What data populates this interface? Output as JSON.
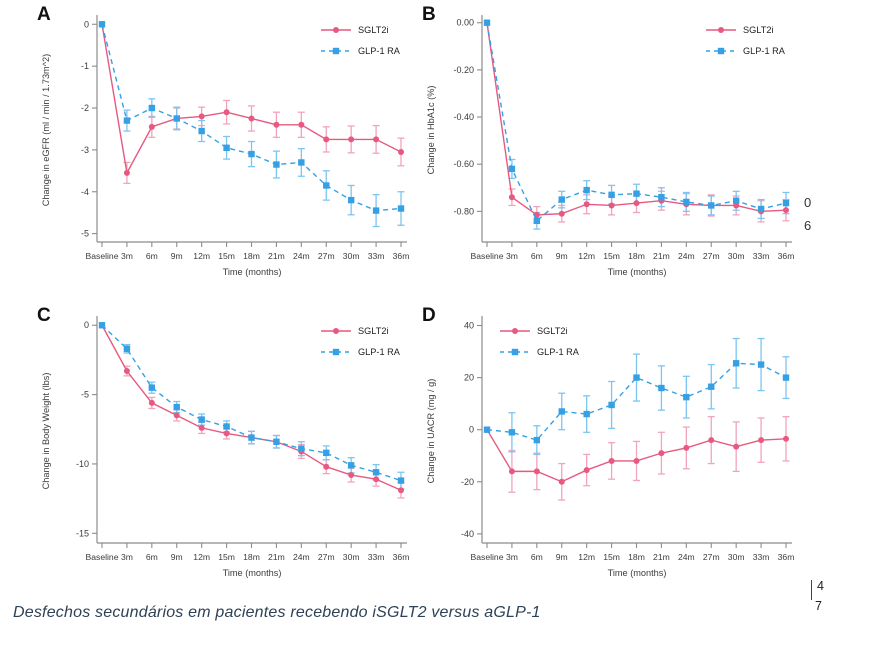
{
  "figure": {
    "caption": "Desfechos secundários em pacientes recebendo iSGLT2 versus aGLP-1",
    "clipped_right": {
      "line1": "0",
      "line2": "6"
    },
    "page_marks": {
      "line1": "4",
      "line2": "7"
    }
  },
  "colors": {
    "sglt2i": "#e75981",
    "sglt2i_error": "#f2a4bb",
    "glp1": "#36a0e4",
    "glp1_error": "#7cc5f1",
    "axis": "#8c8c8c",
    "tick_text": "#3c3c3c",
    "legend_text": "#222222",
    "caption_text": "#2f4156"
  },
  "chart_data": [
    {
      "letter": "A",
      "type": "line",
      "ylabel": "Change in eGFR (ml / min / 1.73m^2)",
      "xlabel": "Time (months)",
      "categories": [
        "Baseline",
        "3m",
        "6m",
        "9m",
        "12m",
        "15m",
        "18m",
        "21m",
        "24m",
        "27m",
        "30m",
        "33m",
        "36m"
      ],
      "ylim": [
        -5.2,
        0.15
      ],
      "ytick_values": [
        0,
        -1,
        -2,
        -3,
        -4,
        -5
      ],
      "ytick_labels": [
        "0",
        "-1",
        "-2",
        "-3",
        "-4",
        "-5"
      ],
      "legend_pos": "top-right",
      "series": [
        {
          "name": "SGLT2i",
          "style": "solid",
          "marker": "circle",
          "color_key": "sglt2i",
          "error_color_key": "sglt2i_error",
          "values": [
            0,
            -3.55,
            -2.45,
            -2.25,
            -2.2,
            -2.1,
            -2.25,
            -2.4,
            -2.4,
            -2.75,
            -2.75,
            -2.75,
            -3.05
          ],
          "errors": [
            0,
            0.25,
            0.25,
            0.25,
            0.22,
            0.28,
            0.3,
            0.3,
            0.3,
            0.3,
            0.32,
            0.33,
            0.33
          ]
        },
        {
          "name": "GLP-1 RA",
          "style": "dashed",
          "marker": "square",
          "color_key": "glp1",
          "error_color_key": "glp1_error",
          "values": [
            0,
            -2.3,
            -2.0,
            -2.25,
            -2.55,
            -2.95,
            -3.1,
            -3.35,
            -3.3,
            -3.85,
            -4.2,
            -4.45,
            -4.4
          ],
          "errors": [
            0,
            0.25,
            0.22,
            0.27,
            0.25,
            0.27,
            0.3,
            0.32,
            0.33,
            0.35,
            0.35,
            0.38,
            0.4
          ]
        }
      ]
    },
    {
      "letter": "B",
      "type": "line",
      "ylabel": "Change in HbA1c (%)",
      "xlabel": "Time (months)",
      "categories": [
        "Baseline",
        "3m",
        "6m",
        "9m",
        "12m",
        "15m",
        "18m",
        "21m",
        "24m",
        "27m",
        "30m",
        "33m",
        "36m"
      ],
      "ylim": [
        -0.93,
        0.02
      ],
      "ytick_values": [
        0,
        -0.2,
        -0.4,
        -0.6,
        -0.8
      ],
      "ytick_labels": [
        "0.00",
        "-0.20",
        "-0.40",
        "-0.60",
        "-0.80"
      ],
      "legend_pos": "top-right",
      "series": [
        {
          "name": "SGLT2i",
          "style": "solid",
          "marker": "circle",
          "color_key": "sglt2i",
          "error_color_key": "sglt2i_error",
          "values": [
            0,
            -0.74,
            -0.815,
            -0.81,
            -0.77,
            -0.775,
            -0.765,
            -0.755,
            -0.77,
            -0.775,
            -0.775,
            -0.8,
            -0.795
          ],
          "errors": [
            0,
            0.035,
            0.035,
            0.035,
            0.04,
            0.04,
            0.04,
            0.04,
            0.045,
            0.045,
            0.04,
            0.045,
            0.045
          ]
        },
        {
          "name": "GLP-1 RA",
          "style": "dashed",
          "marker": "square",
          "color_key": "glp1",
          "error_color_key": "glp1_error",
          "values": [
            0,
            -0.62,
            -0.84,
            -0.75,
            -0.71,
            -0.73,
            -0.725,
            -0.74,
            -0.76,
            -0.775,
            -0.755,
            -0.79,
            -0.765
          ],
          "errors": [
            0,
            0.04,
            0.035,
            0.035,
            0.04,
            0.04,
            0.04,
            0.04,
            0.04,
            0.04,
            0.04,
            0.04,
            0.045
          ]
        }
      ]
    },
    {
      "letter": "C",
      "type": "line",
      "ylabel": "Change in Body Weight (lbs)",
      "xlabel": "Time (months)",
      "categories": [
        "Baseline",
        "3m",
        "6m",
        "9m",
        "12m",
        "15m",
        "18m",
        "21m",
        "24m",
        "27m",
        "30m",
        "33m",
        "36m"
      ],
      "ylim": [
        -15.7,
        0.45
      ],
      "ytick_values": [
        0,
        -5,
        -10,
        -15
      ],
      "ytick_labels": [
        "0",
        "-5",
        "-10",
        "-15"
      ],
      "legend_pos": "top-right",
      "series": [
        {
          "name": "SGLT2i",
          "style": "solid",
          "marker": "circle",
          "color_key": "sglt2i",
          "error_color_key": "sglt2i_error",
          "values": [
            0,
            -3.3,
            -5.6,
            -6.5,
            -7.4,
            -7.8,
            -8.1,
            -8.4,
            -9.1,
            -10.2,
            -10.8,
            -11.1,
            -11.9
          ],
          "errors": [
            0,
            0.35,
            0.4,
            0.4,
            0.4,
            0.4,
            0.45,
            0.45,
            0.5,
            0.5,
            0.5,
            0.5,
            0.55
          ]
        },
        {
          "name": "GLP-1 RA",
          "style": "dashed",
          "marker": "square",
          "color_key": "glp1",
          "error_color_key": "glp1_error",
          "values": [
            0,
            -1.7,
            -4.5,
            -5.9,
            -6.8,
            -7.3,
            -8.1,
            -8.4,
            -8.9,
            -9.2,
            -10.1,
            -10.6,
            -11.2
          ],
          "errors": [
            0,
            0.3,
            0.4,
            0.4,
            0.4,
            0.4,
            0.45,
            0.45,
            0.5,
            0.5,
            0.55,
            0.55,
            0.6
          ]
        }
      ]
    },
    {
      "letter": "D",
      "type": "line",
      "ylabel": "Change in UACR (mg / g)",
      "xlabel": "Time (months)",
      "categories": [
        "Baseline",
        "3m",
        "6m",
        "9m",
        "12m",
        "15m",
        "18m",
        "21m",
        "24m",
        "27m",
        "30m",
        "33m",
        "36m"
      ],
      "ylim": [
        -43.5,
        42.5
      ],
      "ytick_values": [
        40,
        20,
        0,
        -20,
        -40
      ],
      "ytick_labels": [
        "40",
        "20",
        "0",
        "-20",
        "-40"
      ],
      "legend_pos": "top-left",
      "series": [
        {
          "name": "SGLT2i",
          "style": "solid",
          "marker": "circle",
          "color_key": "sglt2i",
          "error_color_key": "sglt2i_error",
          "values": [
            0,
            -16,
            -16,
            -20,
            -15.5,
            -12,
            -12,
            -9,
            -7,
            -4,
            -6.5,
            -4,
            -3.5
          ],
          "errors": [
            0,
            8,
            7,
            7,
            6,
            7,
            7.5,
            8,
            8,
            9,
            9.5,
            8.5,
            8.5
          ]
        },
        {
          "name": "GLP-1 RA",
          "style": "dashed",
          "marker": "square",
          "color_key": "glp1",
          "error_color_key": "glp1_error",
          "values": [
            0,
            -1,
            -4,
            7,
            6,
            9.5,
            20,
            16,
            12.5,
            16.5,
            25.5,
            25,
            20
          ],
          "errors": [
            0,
            7.5,
            5.5,
            7,
            7,
            9,
            9,
            8.5,
            8,
            8.5,
            9.5,
            10,
            8
          ]
        }
      ]
    }
  ]
}
